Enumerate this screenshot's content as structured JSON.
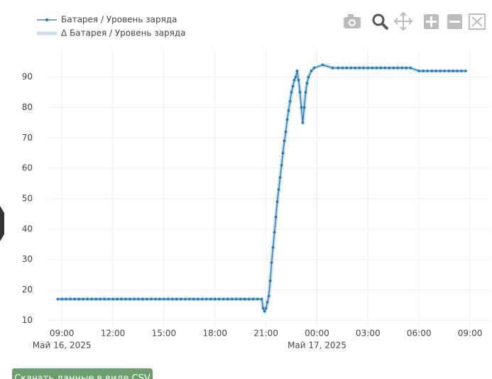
{
  "chart_data": {
    "type": "line",
    "x": [
      "2025-05-16T08:45",
      "2025-05-16T09:00",
      "2025-05-16T09:15",
      "2025-05-16T09:30",
      "2025-05-16T09:45",
      "2025-05-16T10:00",
      "2025-05-16T10:15",
      "2025-05-16T10:30",
      "2025-05-16T10:45",
      "2025-05-16T11:00",
      "2025-05-16T11:15",
      "2025-05-16T11:30",
      "2025-05-16T11:45",
      "2025-05-16T12:00",
      "2025-05-16T12:15",
      "2025-05-16T12:30",
      "2025-05-16T12:45",
      "2025-05-16T13:00",
      "2025-05-16T13:15",
      "2025-05-16T13:30",
      "2025-05-16T13:45",
      "2025-05-16T14:00",
      "2025-05-16T14:15",
      "2025-05-16T14:30",
      "2025-05-16T14:45",
      "2025-05-16T15:00",
      "2025-05-16T15:15",
      "2025-05-16T15:30",
      "2025-05-16T15:45",
      "2025-05-16T16:00",
      "2025-05-16T16:15",
      "2025-05-16T16:30",
      "2025-05-16T16:45",
      "2025-05-16T17:00",
      "2025-05-16T17:15",
      "2025-05-16T17:30",
      "2025-05-16T17:45",
      "2025-05-16T18:00",
      "2025-05-16T18:15",
      "2025-05-16T18:30",
      "2025-05-16T18:45",
      "2025-05-16T19:00",
      "2025-05-16T19:15",
      "2025-05-16T19:30",
      "2025-05-16T19:45",
      "2025-05-16T20:00",
      "2025-05-16T20:15",
      "2025-05-16T20:30",
      "2025-05-16T20:45",
      "2025-05-16T20:50",
      "2025-05-16T20:55",
      "2025-05-16T21:00",
      "2025-05-16T21:05",
      "2025-05-16T21:10",
      "2025-05-16T21:15",
      "2025-05-16T21:20",
      "2025-05-16T21:25",
      "2025-05-16T21:30",
      "2025-05-16T21:35",
      "2025-05-16T21:40",
      "2025-05-16T21:45",
      "2025-05-16T21:50",
      "2025-05-16T21:55",
      "2025-05-16T22:00",
      "2025-05-16T22:05",
      "2025-05-16T22:10",
      "2025-05-16T22:15",
      "2025-05-16T22:20",
      "2025-05-16T22:25",
      "2025-05-16T22:30",
      "2025-05-16T22:35",
      "2025-05-16T22:40",
      "2025-05-16T22:45",
      "2025-05-16T22:50",
      "2025-05-16T22:55",
      "2025-05-16T23:00",
      "2025-05-16T23:05",
      "2025-05-16T23:10",
      "2025-05-16T23:15",
      "2025-05-16T23:20",
      "2025-05-16T23:25",
      "2025-05-16T23:30",
      "2025-05-16T23:40",
      "2025-05-16T23:50",
      "2025-05-17T00:20",
      "2025-05-17T00:55",
      "2025-05-17T01:15",
      "2025-05-17T01:30",
      "2025-05-17T01:45",
      "2025-05-17T02:00",
      "2025-05-17T02:15",
      "2025-05-17T02:30",
      "2025-05-17T02:45",
      "2025-05-17T03:00",
      "2025-05-17T03:15",
      "2025-05-17T03:30",
      "2025-05-17T03:45",
      "2025-05-17T04:00",
      "2025-05-17T04:15",
      "2025-05-17T04:30",
      "2025-05-17T04:45",
      "2025-05-17T05:00",
      "2025-05-17T05:15",
      "2025-05-17T05:30",
      "2025-05-17T06:00",
      "2025-05-17T06:15",
      "2025-05-17T06:30",
      "2025-05-17T06:45",
      "2025-05-17T07:00",
      "2025-05-17T07:15",
      "2025-05-17T07:30",
      "2025-05-17T07:45",
      "2025-05-17T08:00",
      "2025-05-17T08:15",
      "2025-05-17T08:30",
      "2025-05-17T08:45"
    ],
    "series": [
      {
        "name": "Батарея / Уровень заряда",
        "color": "#1f77b4",
        "values": [
          17,
          17,
          17,
          17,
          17,
          17,
          17,
          17,
          17,
          17,
          17,
          17,
          17,
          17,
          17,
          17,
          17,
          17,
          17,
          17,
          17,
          17,
          17,
          17,
          17,
          17,
          17,
          17,
          17,
          17,
          17,
          17,
          17,
          17,
          17,
          17,
          17,
          17,
          17,
          17,
          17,
          17,
          17,
          17,
          17,
          17,
          17,
          17,
          17,
          14,
          13,
          14,
          16,
          18,
          23,
          29,
          34,
          39,
          44,
          49,
          53,
          57,
          61,
          65,
          69,
          72,
          76,
          79,
          82,
          85,
          87,
          89,
          90,
          92,
          89,
          85,
          80,
          75,
          80,
          85,
          88,
          90,
          92,
          93,
          94,
          93,
          93,
          93,
          93,
          93,
          93,
          93,
          93,
          93,
          93,
          93,
          93,
          93,
          93,
          93,
          93,
          93,
          93,
          93,
          92,
          92,
          92,
          92,
          92,
          92,
          92,
          92,
          92,
          92,
          92,
          92
        ]
      },
      {
        "name": "Δ Батарея / Уровень заряда",
        "color": "#c9dcec",
        "values": [
          17,
          17,
          17,
          17,
          17,
          17,
          17,
          17,
          17,
          17,
          17,
          17,
          17,
          17,
          17,
          17,
          17,
          17,
          17,
          17,
          17,
          17,
          17,
          17,
          17,
          17,
          17,
          17,
          17,
          17,
          17,
          17,
          17,
          17,
          17,
          17,
          17,
          17,
          17,
          17,
          17,
          17,
          17,
          17,
          17,
          17,
          17,
          17,
          17,
          14,
          13,
          14,
          16,
          18,
          23,
          29,
          34,
          39,
          44,
          49,
          53,
          57,
          61,
          65,
          69,
          72,
          76,
          79,
          82,
          85,
          87,
          89,
          90,
          92,
          89,
          85,
          80,
          75,
          80,
          85,
          88,
          90,
          92,
          93,
          94,
          93,
          93,
          93,
          93,
          93,
          93,
          93,
          93,
          93,
          93,
          93,
          93,
          93,
          93,
          93,
          93,
          93,
          93,
          93,
          92,
          92,
          92,
          92,
          92,
          92,
          92,
          92,
          92,
          92,
          92,
          92
        ]
      }
    ],
    "xlim": [
      "2025-05-16T08:12",
      "2025-05-17T10:10"
    ],
    "xticks": [
      {
        "value": "2025-05-16T09:00",
        "label": "09:00"
      },
      {
        "value": "2025-05-16T12:00",
        "label": "12:00"
      },
      {
        "value": "2025-05-16T15:00",
        "label": "15:00"
      },
      {
        "value": "2025-05-16T18:00",
        "label": "18:00"
      },
      {
        "value": "2025-05-16T21:00",
        "label": "21:00"
      },
      {
        "value": "2025-05-17T00:00",
        "label": "00:00"
      },
      {
        "value": "2025-05-17T03:00",
        "label": "03:00"
      },
      {
        "value": "2025-05-17T06:00",
        "label": "06:00"
      },
      {
        "value": "2025-05-17T09:00",
        "label": "09:00"
      }
    ],
    "xtick_dates": [
      {
        "value": "2025-05-16T09:00",
        "label": "Май 16, 2025"
      },
      {
        "value": "2025-05-17T00:00",
        "label": "Май 17, 2025"
      }
    ],
    "ylim": [
      8,
      99
    ],
    "yticks": [
      10,
      20,
      30,
      40,
      50,
      60,
      70,
      80,
      90
    ],
    "grid": true
  },
  "button": {
    "label": "Скачать данные в виде CSV"
  }
}
